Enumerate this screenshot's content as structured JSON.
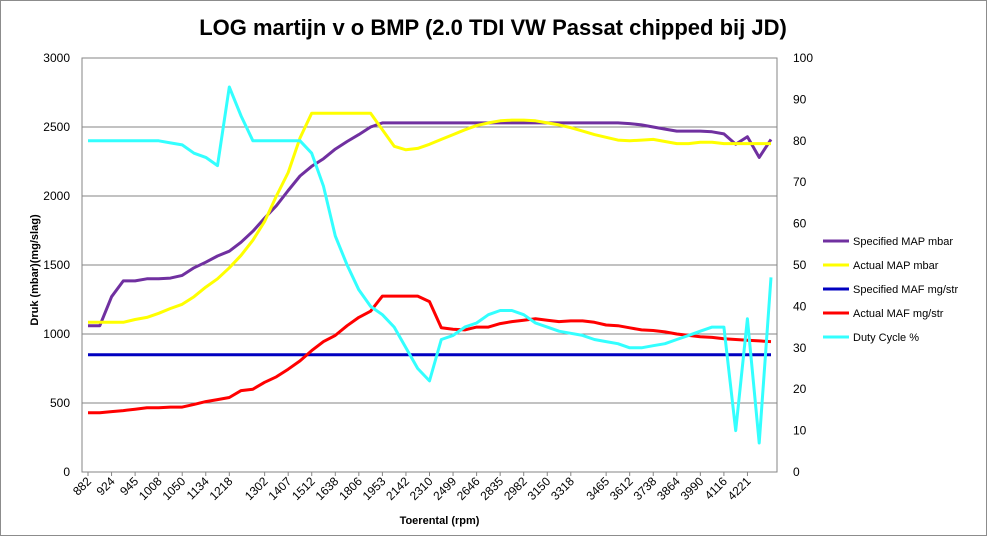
{
  "chart_data": {
    "type": "line",
    "title": "LOG martijn v o BMP (2.0 TDI VW Passat chipped bij JD)",
    "xlabel": "Toerental (rpm)",
    "ylabel": "Druk (mbar)(mg/slag)",
    "ylim": [
      0,
      3000
    ],
    "y2lim": [
      0,
      100
    ],
    "y_ticks": [
      "0",
      "500",
      "1000",
      "1500",
      "2000",
      "2500",
      "3000"
    ],
    "y2_ticks": [
      "0",
      "10",
      "20",
      "30",
      "40",
      "50",
      "60",
      "70",
      "80",
      "90",
      "100"
    ],
    "x_tick_labels": [
      "882",
      "924",
      "945",
      "1008",
      "1050",
      "1134",
      "1218",
      "1302",
      "1407",
      "1512",
      "1638",
      "1806",
      "1953",
      "2142",
      "2310",
      "2499",
      "2646",
      "2835",
      "2982",
      "3150",
      "3318",
      "3465",
      "3612",
      "3738",
      "3864",
      "3990",
      "4116",
      "4221"
    ],
    "grid": true,
    "legend_position": "right",
    "series": [
      {
        "name": "Specified MAP  mbar",
        "axis": "left",
        "color": "#7030a0",
        "values": [
          1060,
          1060,
          1270,
          1385,
          1385,
          1400,
          1400,
          1405,
          1425,
          1480,
          1520,
          1565,
          1600,
          1665,
          1745,
          1840,
          1930,
          2040,
          2145,
          2215,
          2270,
          2340,
          2395,
          2445,
          2500,
          2530,
          2530,
          2530,
          2530,
          2530,
          2530,
          2530,
          2530,
          2530,
          2530,
          2530,
          2530,
          2530,
          2530,
          2530,
          2530,
          2530,
          2530,
          2530,
          2530,
          2530,
          2525,
          2515,
          2500,
          2485,
          2470,
          2470,
          2470,
          2465,
          2450,
          2375,
          2430,
          2280,
          2410
        ]
      },
      {
        "name": "Actual MAP  mbar",
        "axis": "left",
        "color": "#ffff00",
        "values": [
          1085,
          1085,
          1085,
          1085,
          1105,
          1120,
          1150,
          1185,
          1215,
          1270,
          1340,
          1400,
          1480,
          1570,
          1680,
          1815,
          2000,
          2170,
          2420,
          2600,
          2600,
          2600,
          2600,
          2600,
          2600,
          2480,
          2360,
          2335,
          2345,
          2375,
          2410,
          2445,
          2480,
          2510,
          2530,
          2545,
          2550,
          2550,
          2545,
          2530,
          2515,
          2495,
          2470,
          2445,
          2425,
          2405,
          2400,
          2405,
          2410,
          2395,
          2380,
          2380,
          2390,
          2390,
          2380,
          2380,
          2380,
          2380,
          2380
        ]
      },
      {
        "name": "Specified MAF  mg/str",
        "axis": "left",
        "color": "#0000c0",
        "values": [
          850,
          850,
          850,
          850,
          850,
          850,
          850,
          850,
          850,
          850,
          850,
          850,
          850,
          850,
          850,
          850,
          850,
          850,
          850,
          850,
          850,
          850,
          850,
          850,
          850,
          850,
          850,
          850,
          850,
          850,
          850,
          850,
          850,
          850,
          850,
          850,
          850,
          850,
          850,
          850,
          850,
          850,
          850,
          850,
          850,
          850,
          850,
          850,
          850,
          850,
          850,
          850,
          850,
          850,
          850,
          850,
          850,
          850,
          850
        ]
      },
      {
        "name": "Actual MAF  mg/str",
        "axis": "left",
        "color": "#ff0000",
        "values": [
          430,
          430,
          438,
          445,
          455,
          465,
          465,
          470,
          470,
          490,
          510,
          525,
          540,
          590,
          600,
          650,
          690,
          745,
          805,
          880,
          945,
          990,
          1060,
          1120,
          1165,
          1275,
          1275,
          1275,
          1275,
          1235,
          1045,
          1035,
          1030,
          1050,
          1050,
          1075,
          1090,
          1100,
          1110,
          1100,
          1090,
          1095,
          1095,
          1085,
          1065,
          1060,
          1045,
          1030,
          1025,
          1015,
          1000,
          990,
          980,
          975,
          965,
          960,
          955,
          950,
          945
        ]
      },
      {
        "name": "Duty Cycle  %",
        "axis": "right",
        "color": "#33ffff",
        "values": [
          80,
          80,
          80,
          80,
          80,
          80,
          80,
          79.5,
          79,
          77,
          76,
          74,
          93,
          86,
          80,
          80,
          80,
          80,
          80,
          77,
          69,
          57,
          50,
          44,
          40,
          38,
          35,
          30,
          25,
          22,
          32,
          33,
          35,
          36,
          38,
          39,
          39,
          38,
          36,
          35,
          34,
          33.5,
          33,
          32,
          31.5,
          31,
          30,
          30,
          30.5,
          31,
          32,
          33,
          34,
          35,
          35,
          10,
          37,
          7,
          47
        ]
      }
    ]
  }
}
